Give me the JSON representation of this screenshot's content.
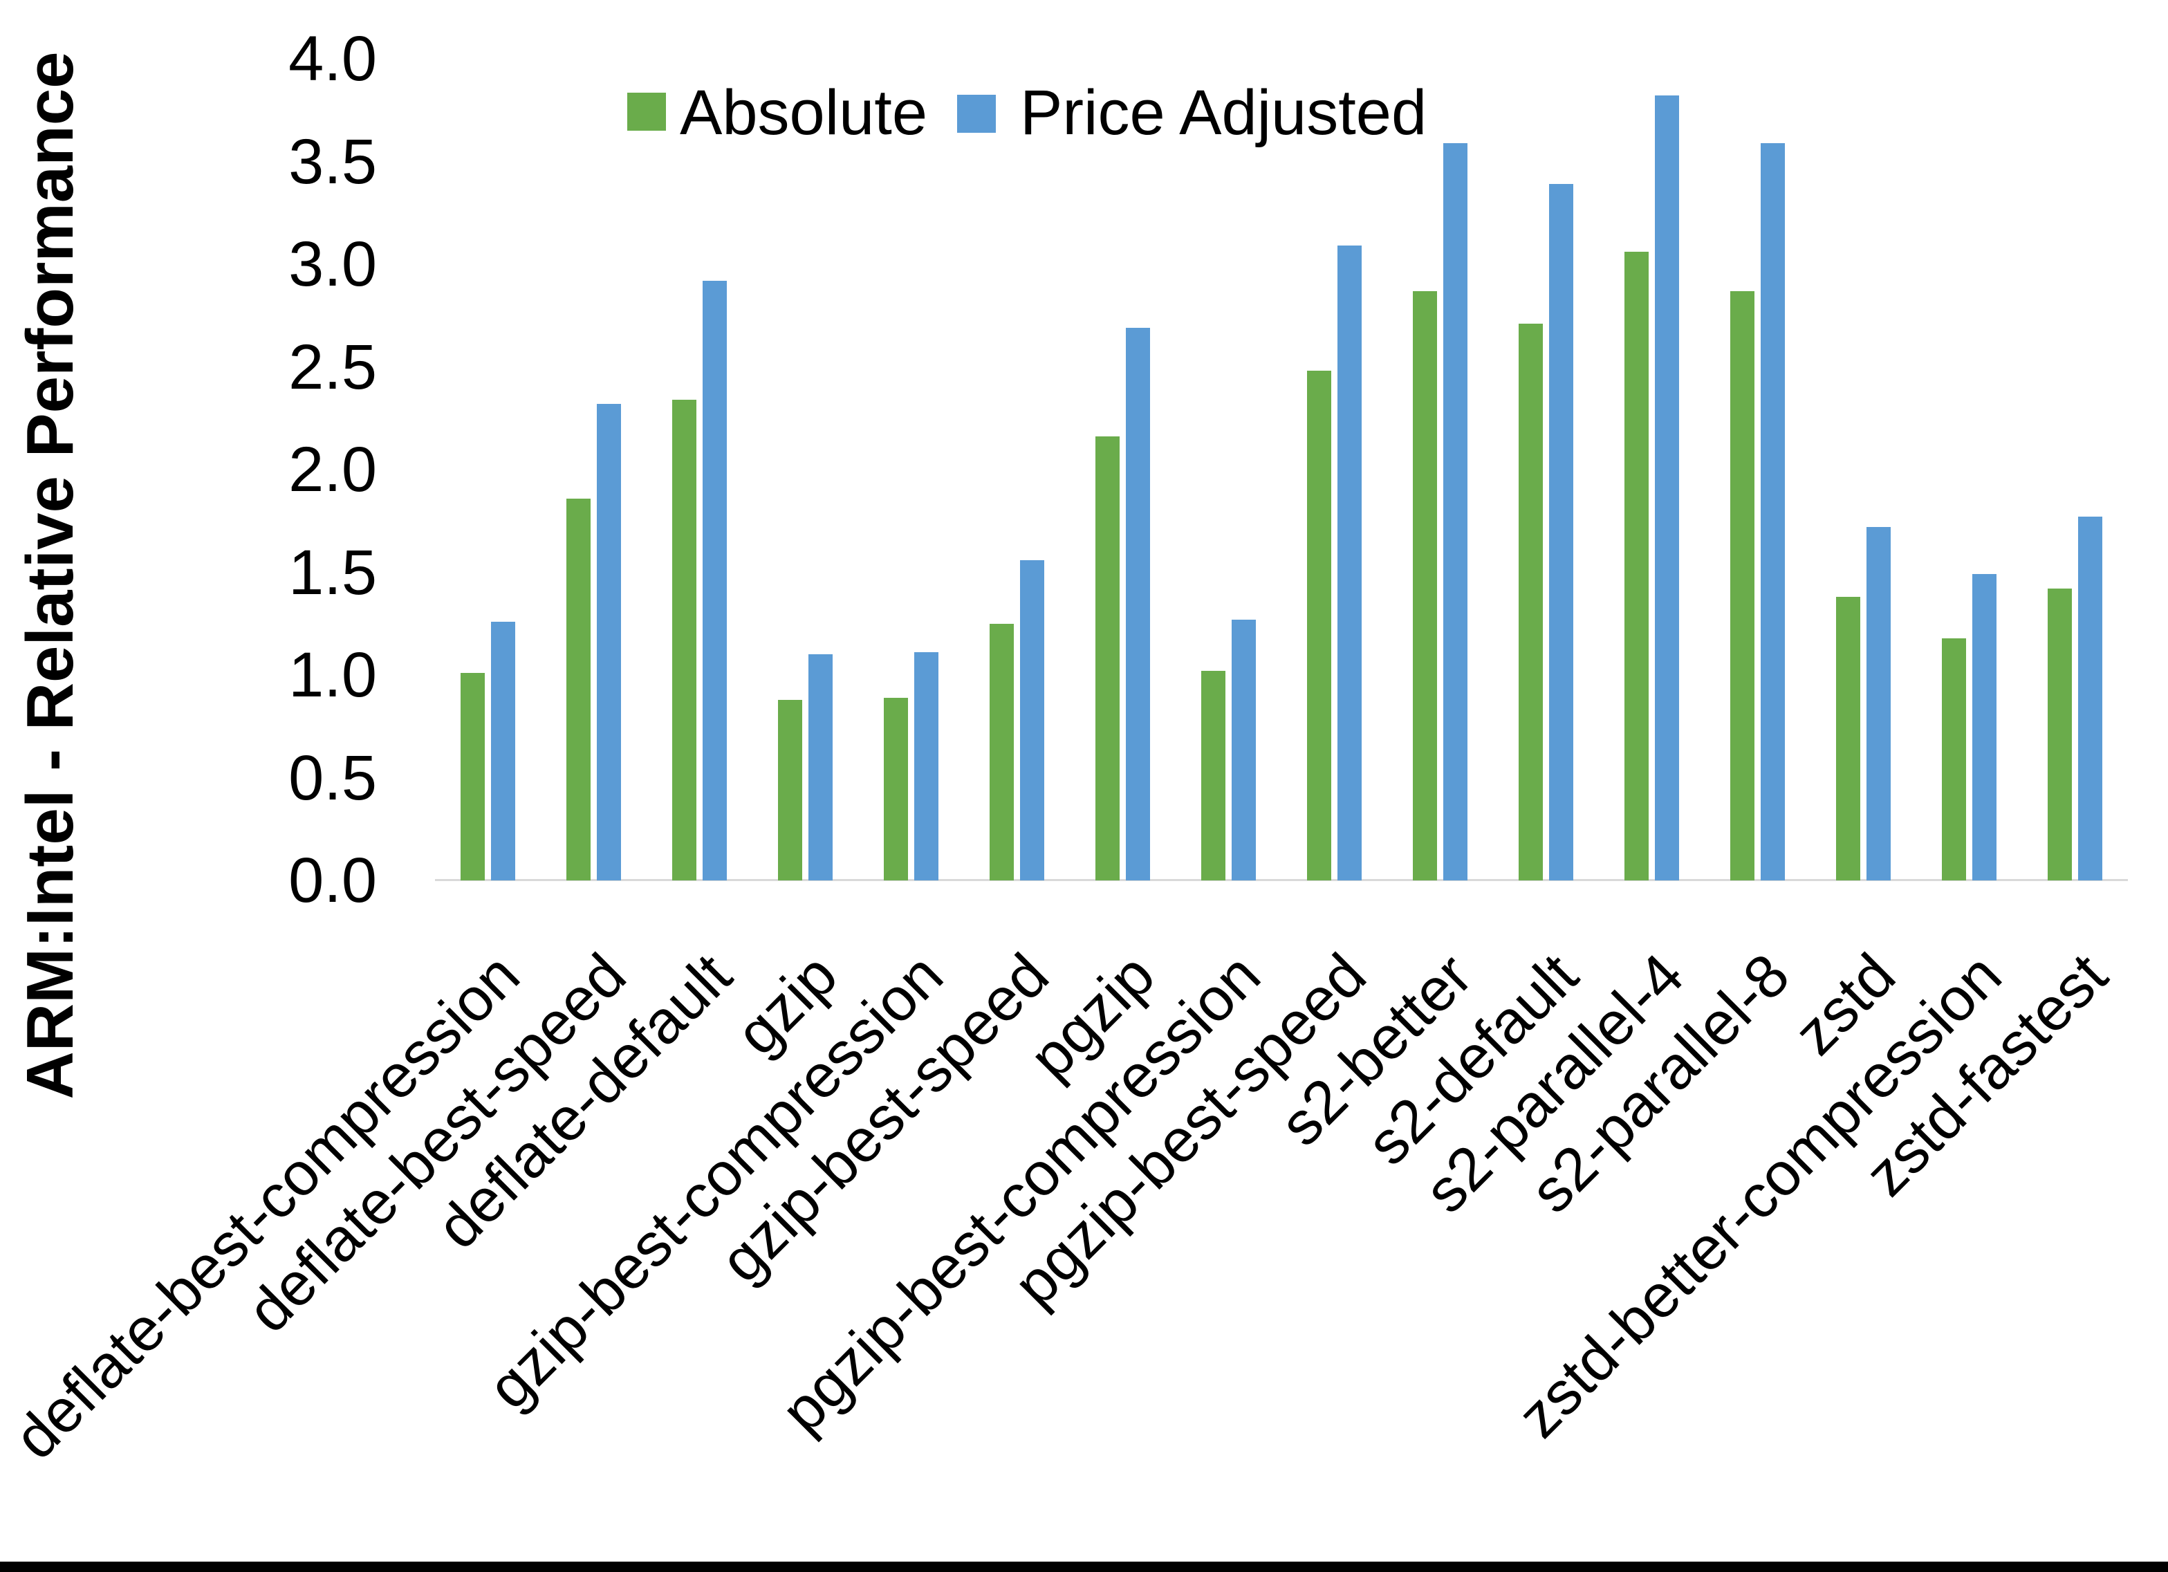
{
  "chart_data": {
    "type": "bar",
    "title": "",
    "xlabel": "",
    "ylabel": "ARM:Intel - Relative Performance",
    "ylim": [
      0.0,
      4.0
    ],
    "ytick_step": 0.5,
    "ytick_labels": [
      "4.0",
      "3.5",
      "3.0",
      "2.5",
      "2.0",
      "1.5",
      "1.0",
      "0.5",
      "0.0"
    ],
    "grid": false,
    "legend_position": "top-center",
    "categories": [
      "deflate-best-compression",
      "deflate-best-speed",
      "deflate-default",
      "gzip",
      "gzip-best-compression",
      "gzip-best-speed",
      "pgzip",
      "pgzip-best-compression",
      "pgzip-best-speed",
      "s2-better",
      "s2-default",
      "s2-parallel-4",
      "s2-parallel-8",
      "zstd",
      "zstd-better-compression",
      "zstd-fastest"
    ],
    "series": [
      {
        "name": "Absolute",
        "color": "#6AAC4B",
        "values": [
          1.01,
          1.86,
          2.34,
          0.88,
          0.89,
          1.25,
          2.16,
          1.02,
          2.48,
          2.87,
          2.71,
          3.06,
          2.87,
          1.38,
          1.18,
          1.42
        ]
      },
      {
        "name": "Price Adjusted",
        "color": "#5B9BD5",
        "values": [
          1.26,
          2.32,
          2.92,
          1.1,
          1.11,
          1.56,
          2.69,
          1.27,
          3.09,
          3.59,
          3.39,
          3.82,
          3.59,
          1.72,
          1.49,
          1.77
        ]
      }
    ],
    "colors": {
      "axis_line": "#d9d9d9",
      "text": "#000000",
      "bottom_border": "#000000"
    }
  }
}
